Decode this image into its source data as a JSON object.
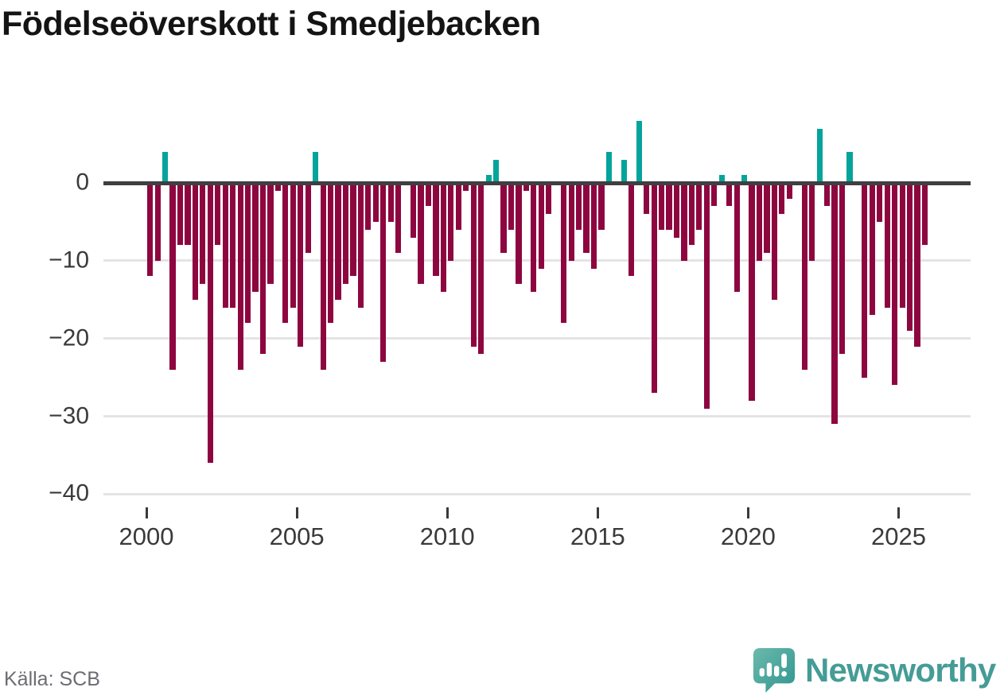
{
  "title": "Födelseöverskott i Smedjebacken",
  "source": {
    "text": "Källa: SCB"
  },
  "logo": {
    "text": "Newsworthy",
    "icon": "speech-bubble-bar-chart-exclamation"
  },
  "colors": {
    "negative_bar": "#8e0640",
    "positive_bar": "#04a49c",
    "zero_line": "#3f3f42",
    "gridline": "#e4e4e6",
    "axis_text": "#3a3a3a",
    "title_text": "#141414",
    "source_text": "#6c6c75",
    "logo_teal": "#459c96",
    "logo_bubble_dark": "#2f968f",
    "logo_bubble_light": "#6cb9ad"
  },
  "chart_data": {
    "type": "bar",
    "title": "Födelseöverskott i Smedjebacken",
    "xlabel": "",
    "ylabel": "",
    "unit": "persons per quarter",
    "start_year": 2000,
    "periods_per_year": 4,
    "x_tick_years": [
      2000,
      2005,
      2010,
      2015,
      2020,
      2025
    ],
    "y_ticks": [
      0,
      -10,
      -20,
      -30,
      -40
    ],
    "ylim": [
      -40,
      9
    ],
    "grid": "horizontal",
    "legend": "none",
    "values": [
      -12,
      -10,
      4,
      -24,
      -8,
      -8,
      -15,
      -13,
      -36,
      -8,
      -16,
      -16,
      -24,
      -18,
      -14,
      -22,
      -13,
      -1,
      -18,
      -16,
      -21,
      -9,
      4,
      -24,
      -18,
      -15,
      -13,
      -12,
      -16,
      -6,
      -5,
      -23,
      -5,
      -9,
      0,
      -7,
      -13,
      -3,
      -12,
      -14,
      -10,
      -6,
      -1,
      -21,
      -22,
      1,
      3,
      -9,
      -6,
      -13,
      -1,
      -14,
      -11,
      -4,
      0,
      -18,
      -10,
      -6,
      -9,
      -11,
      -6,
      4,
      0,
      3,
      -12,
      8,
      -4,
      -27,
      -6,
      -6,
      -7,
      -10,
      -8,
      -6,
      -29,
      -3,
      1,
      -3,
      -14,
      1,
      -28,
      -10,
      -9,
      -15,
      -4,
      -2,
      0,
      -24,
      -10,
      7,
      -3,
      -31,
      -22,
      4,
      0,
      -25,
      -17,
      -5,
      -16,
      -26,
      -16,
      -19,
      -21,
      -8
    ]
  }
}
